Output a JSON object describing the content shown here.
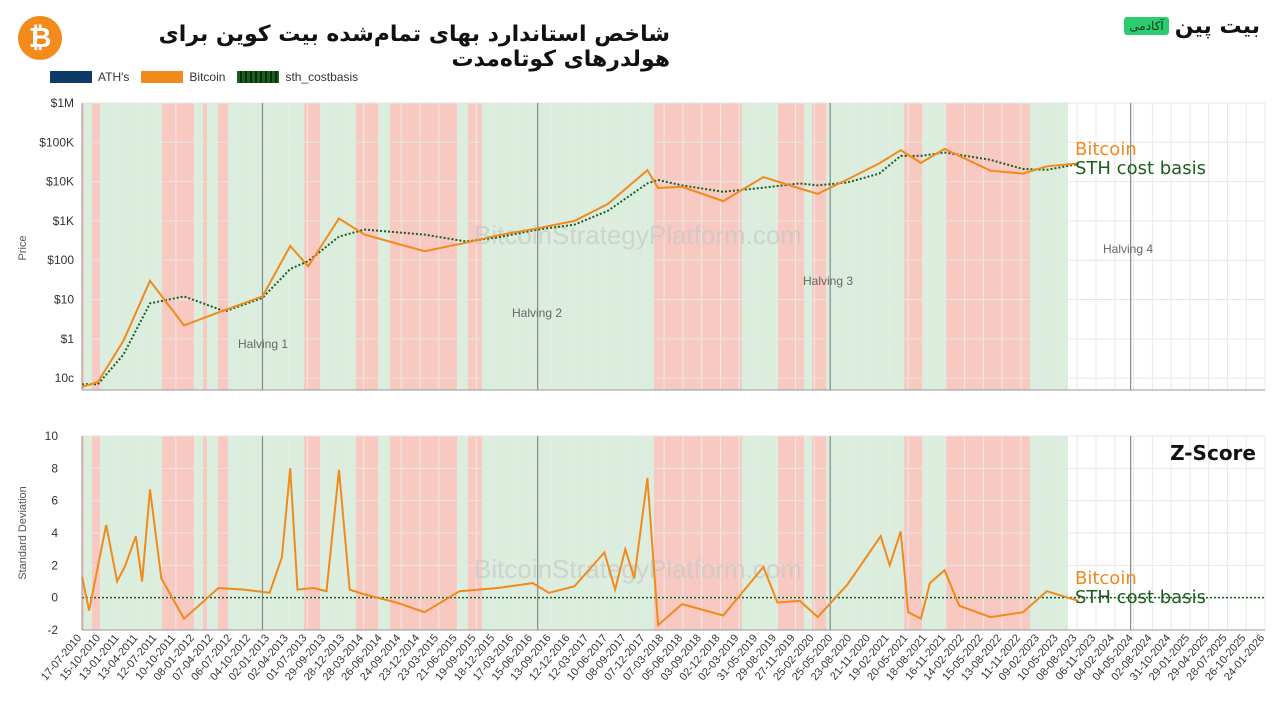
{
  "header": {
    "title": "شاخص استاندارد بهای تمام‌شده بیت کوین برای هولدرهای کوتاه‌مدت",
    "logo_symbol": "₿",
    "brand_name": "بیت پین",
    "brand_badge": "آکادمی"
  },
  "watermark": "BitcoinStrategyPlatform.com",
  "colors": {
    "ath": "#0d3b66",
    "bitcoin": "#f08a1c",
    "sth": "#1b5e20",
    "green_band": "#dbeedd",
    "red_band": "#f8c9c0"
  },
  "chart_data": [
    {
      "type": "line",
      "title": "",
      "ylabel": "Price",
      "yscale": "log",
      "ylim": [
        0.05,
        1000000
      ],
      "ytick_labels": [
        "10c",
        "$1",
        "$10",
        "$100",
        "$1K",
        "$10K",
        "$100K",
        "$1M"
      ],
      "ytick_values": [
        0.1,
        1,
        10,
        100,
        1000,
        10000,
        100000,
        1000000
      ],
      "legend": [
        "ATH's",
        "Bitcoin",
        "sth_costbasis"
      ],
      "legend_position": "top-left",
      "annotations": [
        "Halving 1",
        "Halving 2",
        "Halving 3",
        "Halving 4"
      ],
      "right_labels": [
        "Bitcoin",
        "STH cost basis"
      ],
      "halving_dates": [
        "2012-11-28",
        "2016-07-09",
        "2020-05-11",
        "2024-04-20"
      ],
      "series": [
        {
          "name": "Bitcoin",
          "x": [
            "2010-07-17",
            "2010-10-01",
            "2011-02-01",
            "2011-06-08",
            "2011-11-18",
            "2012-06-01",
            "2012-11-28",
            "2013-04-10",
            "2013-07-05",
            "2013-11-30",
            "2014-04-01",
            "2015-01-14",
            "2015-08-01",
            "2016-01-01",
            "2016-07-09",
            "2017-01-01",
            "2017-06-10",
            "2017-12-17",
            "2018-02-06",
            "2018-06-01",
            "2018-12-15",
            "2019-06-26",
            "2019-12-18",
            "2020-03-12",
            "2020-08-01",
            "2021-01-01",
            "2021-04-14",
            "2021-07-20",
            "2021-11-10",
            "2022-06-18",
            "2022-11-21",
            "2023-03-15",
            "2023-08-15"
          ],
          "y": [
            0.06,
            0.08,
            0.9,
            30,
            2.2,
            5.4,
            12,
            230,
            70,
            1150,
            450,
            170,
            280,
            430,
            650,
            1000,
            2700,
            19500,
            6900,
            7400,
            3200,
            13000,
            6700,
            4900,
            11300,
            29000,
            63000,
            30000,
            68000,
            19000,
            16000,
            24500,
            29000
          ]
        },
        {
          "name": "sth_costbasis",
          "x": [
            "2010-07-17",
            "2010-10-01",
            "2011-02-01",
            "2011-06-08",
            "2011-11-18",
            "2012-06-01",
            "2012-11-28",
            "2013-04-10",
            "2013-07-05",
            "2013-11-30",
            "2014-04-01",
            "2015-01-14",
            "2015-08-01",
            "2016-01-01",
            "2016-07-09",
            "2017-01-01",
            "2017-06-10",
            "2017-12-17",
            "2018-02-06",
            "2018-06-01",
            "2018-12-15",
            "2019-06-26",
            "2019-12-18",
            "2020-03-12",
            "2020-08-01",
            "2021-01-01",
            "2021-04-14",
            "2021-07-20",
            "2021-11-10",
            "2022-06-18",
            "2022-11-21",
            "2023-03-15",
            "2023-08-15"
          ],
          "y": [
            0.07,
            0.07,
            0.4,
            8,
            12,
            5,
            11,
            60,
            95,
            400,
            600,
            450,
            300,
            380,
            600,
            800,
            1800,
            9000,
            11000,
            8000,
            5500,
            7000,
            9000,
            8000,
            9500,
            16000,
            45000,
            45000,
            55000,
            36000,
            21000,
            20000,
            28000
          ]
        }
      ]
    },
    {
      "type": "line",
      "title": "Z-Score",
      "ylabel": "Standard Deviation",
      "ylim": [
        -2,
        10
      ],
      "ytick_values": [
        -2,
        0,
        2,
        4,
        6,
        8,
        10
      ],
      "right_labels": [
        "Bitcoin",
        "STH cost basis"
      ],
      "xlim": [
        "2010-07-17",
        "2026-01-24"
      ],
      "xtick_labels": [
        "17-07-2010",
        "15-10-2010",
        "13-01-2011",
        "13-04-2011",
        "12-07-2011",
        "10-10-2011",
        "08-01-2012",
        "07-04-2012",
        "06-07-2012",
        "04-10-2012",
        "02-01-2013",
        "02-04-2013",
        "01-07-2013",
        "29-09-2013",
        "28-12-2013",
        "28-03-2014",
        "26-06-2014",
        "24-09-2014",
        "23-12-2014",
        "23-03-2015",
        "21-06-2015",
        "19-09-2015",
        "18-12-2015",
        "17-03-2016",
        "15-06-2016",
        "13-09-2016",
        "12-12-2016",
        "12-03-2017",
        "10-06-2017",
        "08-09-2017",
        "07-12-2017",
        "07-03-2018",
        "05-06-2018",
        "03-09-2018",
        "02-12-2018",
        "02-03-2019",
        "31-05-2019",
        "29-08-2019",
        "27-11-2019",
        "25-02-2020",
        "25-05-2020",
        "23-08-2020",
        "21-11-2020",
        "19-02-2021",
        "20-05-2021",
        "18-08-2021",
        "16-11-2021",
        "14-02-2022",
        "15-05-2022",
        "13-08-2022",
        "11-11-2022",
        "09-02-2023",
        "10-05-2023",
        "08-08-2023",
        "06-11-2023",
        "04-02-2024",
        "04-05-2024",
        "02-08-2024",
        "31-10-2024",
        "29-01-2025",
        "29-04-2025",
        "28-07-2025",
        "26-10-2025",
        "24-01-2026"
      ],
      "series": [
        {
          "name": "Bitcoin",
          "x": [
            "2010-07-17",
            "2010-08-20",
            "2010-11-10",
            "2011-01-01",
            "2011-02-10",
            "2011-04-01",
            "2011-05-01",
            "2011-06-08",
            "2011-08-01",
            "2011-11-18",
            "2012-05-01",
            "2012-09-01",
            "2013-01-01",
            "2013-03-01",
            "2013-04-10",
            "2013-05-15",
            "2013-08-01",
            "2013-10-01",
            "2013-11-30",
            "2014-01-20",
            "2014-04-01",
            "2014-09-01",
            "2015-01-14",
            "2015-07-01",
            "2016-01-01",
            "2016-06-15",
            "2016-09-01",
            "2017-01-01",
            "2017-05-25",
            "2017-07-15",
            "2017-09-02",
            "2017-10-15",
            "2017-12-17",
            "2018-02-06",
            "2018-06-01",
            "2018-12-15",
            "2019-06-26",
            "2019-09-01",
            "2019-12-18",
            "2020-03-12",
            "2020-08-01",
            "2021-01-08",
            "2021-02-20",
            "2021-04-14",
            "2021-05-20",
            "2021-07-20",
            "2021-09-01",
            "2021-11-10",
            "2022-01-20",
            "2022-06-18",
            "2022-11-21",
            "2023-03-15",
            "2023-08-15"
          ],
          "y": [
            1.3,
            -0.8,
            4.5,
            1.0,
            2.0,
            3.8,
            1.0,
            6.7,
            1.2,
            -1.3,
            0.6,
            0.5,
            0.3,
            2.5,
            8.0,
            0.5,
            0.6,
            0.4,
            7.9,
            0.5,
            0.2,
            -0.3,
            -0.9,
            0.4,
            0.6,
            0.9,
            0.3,
            0.7,
            2.8,
            0.5,
            3.0,
            1.2,
            7.4,
            -1.7,
            -0.4,
            -1.1,
            1.9,
            -0.3,
            -0.2,
            -1.2,
            0.8,
            3.8,
            2.0,
            4.1,
            -0.9,
            -1.3,
            0.9,
            1.7,
            -0.5,
            -1.2,
            -0.9,
            0.4,
            -0.2
          ]
        }
      ]
    }
  ]
}
